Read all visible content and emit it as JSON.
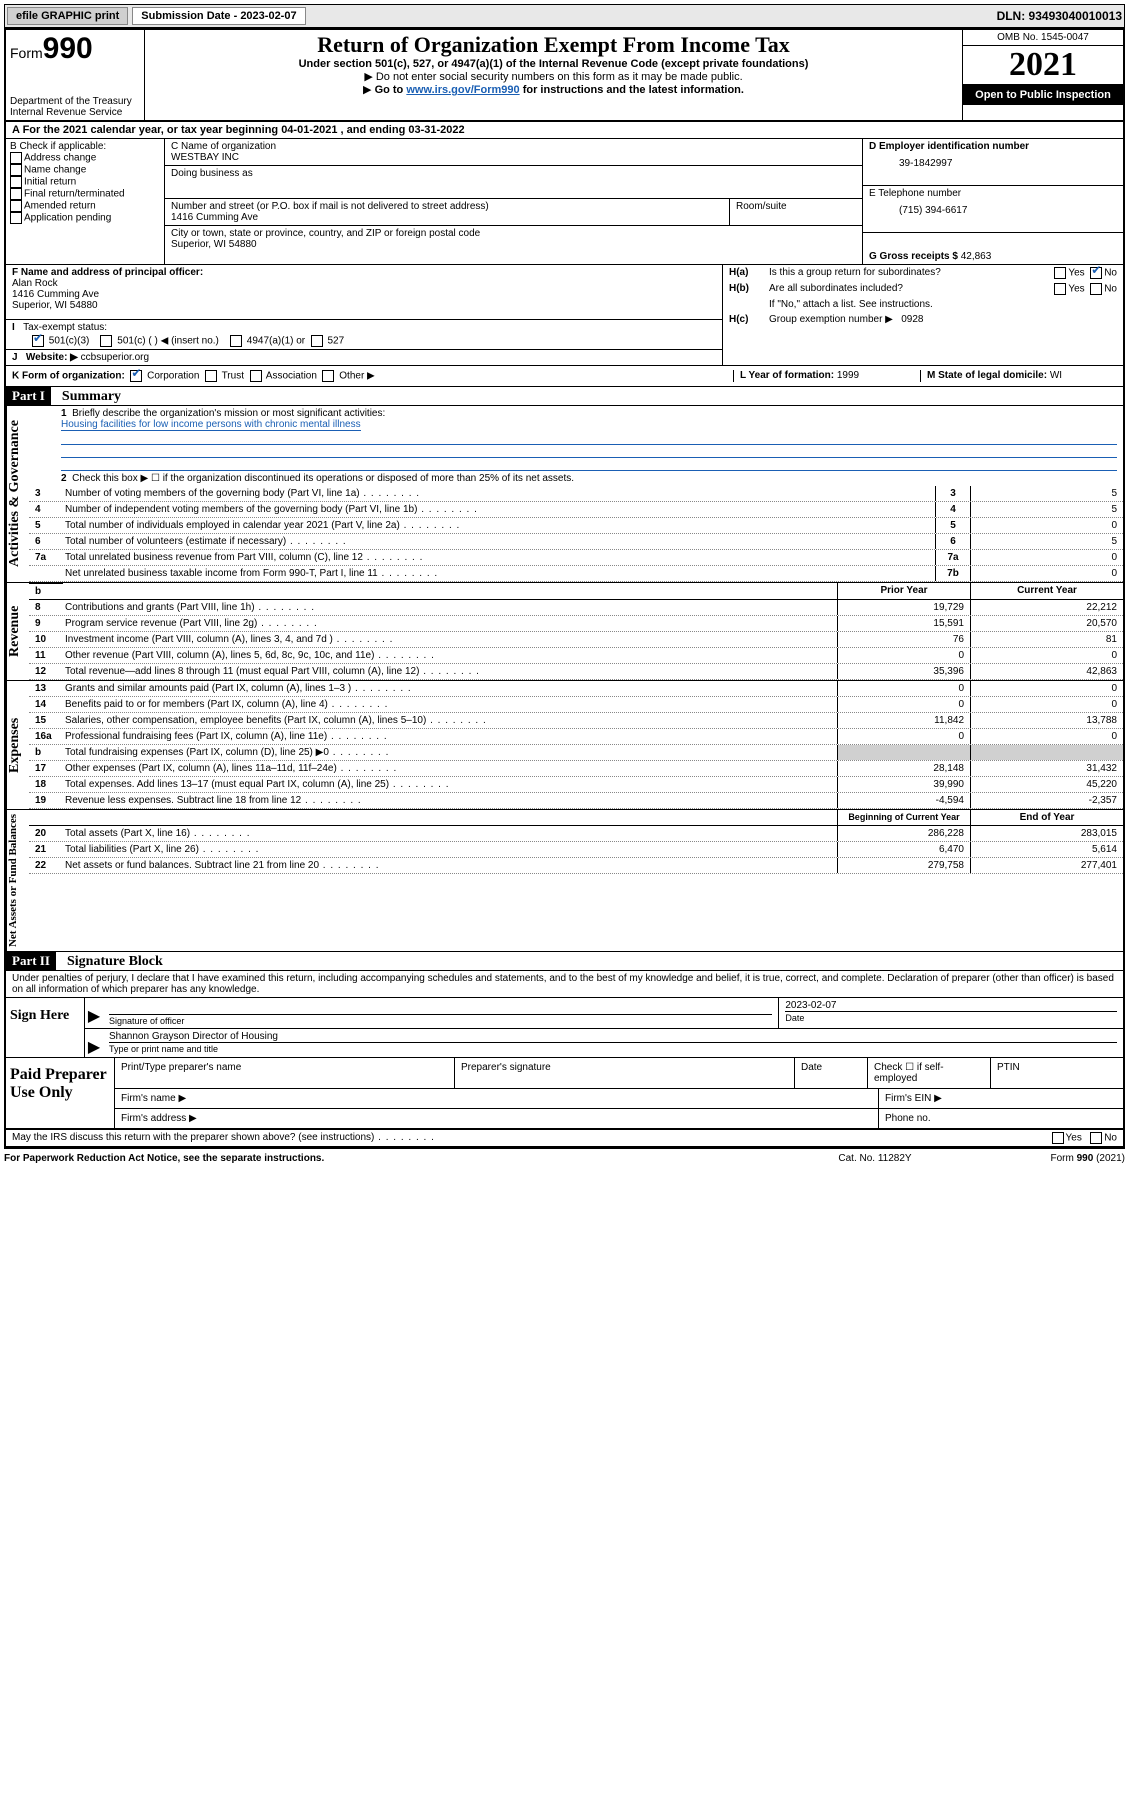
{
  "topbar": {
    "efile_label": "efile GRAPHIC print",
    "sub_date_label": "Submission Date - 2023-02-07",
    "dln": "DLN: 93493040010013"
  },
  "header": {
    "form_label": "Form",
    "form_num": "990",
    "dept": "Department of the Treasury",
    "irs": "Internal Revenue Service",
    "title": "Return of Organization Exempt From Income Tax",
    "subtitle": "Under section 501(c), 527, or 4947(a)(1) of the Internal Revenue Code (except private foundations)",
    "note1": "Do not enter social security numbers on this form as it may be made public.",
    "note2_pre": "Go to ",
    "note2_link": "www.irs.gov/Form990",
    "note2_post": " for instructions and the latest information.",
    "omb": "OMB No. 1545-0047",
    "year": "2021",
    "open": "Open to Public Inspection"
  },
  "row_a": {
    "text": "A For the 2021 calendar year, or tax year beginning 04-01-2021   , and ending 03-31-2022"
  },
  "col_b": {
    "label": "B Check if applicable:",
    "opts": [
      "Address change",
      "Name change",
      "Initial return",
      "Final return/terminated",
      "Amended return",
      "Application pending"
    ]
  },
  "col_c": {
    "name_label": "C Name of organization",
    "name": "WESTBAY INC",
    "dba_label": "Doing business as",
    "dba": "",
    "street_label": "Number and street (or P.O. box if mail is not delivered to street address)",
    "street": "1416 Cumming Ave",
    "room_label": "Room/suite",
    "room": "",
    "city_label": "City or town, state or province, country, and ZIP or foreign postal code",
    "city": "Superior, WI  54880"
  },
  "col_d": {
    "ein_label": "D Employer identification number",
    "ein": "39-1842997",
    "tel_label": "E Telephone number",
    "tel": "(715) 394-6617",
    "gross_label": "G Gross receipts $",
    "gross": "42,863"
  },
  "row_f": {
    "label": "F  Name and address of principal officer:",
    "name": "Alan Rock",
    "addr1": "1416 Cumming Ave",
    "addr2": "Superior, WI  54880"
  },
  "h": {
    "ha_label": "Is this a group return for subordinates?",
    "ha_yes": "Yes",
    "ha_no": "No",
    "hb_label": "Are all subordinates included?",
    "hb_note": "If \"No,\" attach a list. See instructions.",
    "hc_label": "Group exemption number ▶",
    "hc_val": "0928"
  },
  "row_i": {
    "label": "Tax-exempt status:",
    "opt1": "501(c)(3)",
    "opt2": "501(c) (  ) ◀ (insert no.)",
    "opt3": "4947(a)(1) or",
    "opt4": "527"
  },
  "row_j": {
    "label": "Website: ▶",
    "val": "ccbsuperior.org"
  },
  "row_k": {
    "label": "K Form of organization:",
    "opts": [
      "Corporation",
      "Trust",
      "Association",
      "Other ▶"
    ]
  },
  "row_l": {
    "label": "L Year of formation:",
    "val": "1999"
  },
  "row_m": {
    "label": "M State of legal domicile:",
    "val": "WI"
  },
  "part1": {
    "header": "Part I",
    "title": "Summary",
    "q1": "Briefly describe the organization's mission or most significant activities:",
    "q1_ans": "Housing facilities for low income persons with chronic mental illness",
    "q2": "Check this box ▶ ☐  if the organization discontinued its operations or disposed of more than 25% of its net assets.",
    "lines_single": [
      {
        "n": "3",
        "d": "Number of voting members of the governing body (Part VI, line 1a)",
        "b": "3",
        "v": "5"
      },
      {
        "n": "4",
        "d": "Number of independent voting members of the governing body (Part VI, line 1b)",
        "b": "4",
        "v": "5"
      },
      {
        "n": "5",
        "d": "Total number of individuals employed in calendar year 2021 (Part V, line 2a)",
        "b": "5",
        "v": "0"
      },
      {
        "n": "6",
        "d": "Total number of volunteers (estimate if necessary)",
        "b": "6",
        "v": "5"
      },
      {
        "n": "7a",
        "d": "Total unrelated business revenue from Part VIII, column (C), line 12",
        "b": "7a",
        "v": "0"
      },
      {
        "n": "",
        "d": "Net unrelated business taxable income from Form 990-T, Part I, line 11",
        "b": "7b",
        "v": "0"
      }
    ],
    "col_prior": "Prior Year",
    "col_current": "Current Year",
    "revenue": [
      {
        "n": "8",
        "d": "Contributions and grants (Part VIII, line 1h)",
        "p": "19,729",
        "c": "22,212"
      },
      {
        "n": "9",
        "d": "Program service revenue (Part VIII, line 2g)",
        "p": "15,591",
        "c": "20,570"
      },
      {
        "n": "10",
        "d": "Investment income (Part VIII, column (A), lines 3, 4, and 7d )",
        "p": "76",
        "c": "81"
      },
      {
        "n": "11",
        "d": "Other revenue (Part VIII, column (A), lines 5, 6d, 8c, 9c, 10c, and 11e)",
        "p": "0",
        "c": "0"
      },
      {
        "n": "12",
        "d": "Total revenue—add lines 8 through 11 (must equal Part VIII, column (A), line 12)",
        "p": "35,396",
        "c": "42,863"
      }
    ],
    "expenses": [
      {
        "n": "13",
        "d": "Grants and similar amounts paid (Part IX, column (A), lines 1–3 )",
        "p": "0",
        "c": "0"
      },
      {
        "n": "14",
        "d": "Benefits paid to or for members (Part IX, column (A), line 4)",
        "p": "0",
        "c": "0"
      },
      {
        "n": "15",
        "d": "Salaries, other compensation, employee benefits (Part IX, column (A), lines 5–10)",
        "p": "11,842",
        "c": "13,788"
      },
      {
        "n": "16a",
        "d": "Professional fundraising fees (Part IX, column (A), line 11e)",
        "p": "0",
        "c": "0"
      },
      {
        "n": "b",
        "d": "Total fundraising expenses (Part IX, column (D), line 25) ▶0",
        "p": "",
        "c": "",
        "shade": true
      },
      {
        "n": "17",
        "d": "Other expenses (Part IX, column (A), lines 11a–11d, 11f–24e)",
        "p": "28,148",
        "c": "31,432"
      },
      {
        "n": "18",
        "d": "Total expenses. Add lines 13–17 (must equal Part IX, column (A), line 25)",
        "p": "39,990",
        "c": "45,220"
      },
      {
        "n": "19",
        "d": "Revenue less expenses. Subtract line 18 from line 12",
        "p": "-4,594",
        "c": "-2,357"
      }
    ],
    "col_begin": "Beginning of Current Year",
    "col_end": "End of Year",
    "netassets": [
      {
        "n": "20",
        "d": "Total assets (Part X, line 16)",
        "p": "286,228",
        "c": "283,015"
      },
      {
        "n": "21",
        "d": "Total liabilities (Part X, line 26)",
        "p": "6,470",
        "c": "5,614"
      },
      {
        "n": "22",
        "d": "Net assets or fund balances. Subtract line 21 from line 20",
        "p": "279,758",
        "c": "277,401"
      }
    ]
  },
  "part2": {
    "header": "Part II",
    "title": "Signature Block",
    "decl": "Under penalties of perjury, I declare that I have examined this return, including accompanying schedules and statements, and to the best of my knowledge and belief, it is true, correct, and complete. Declaration of preparer (other than officer) is based on all information of which preparer has any knowledge.",
    "sign_here": "Sign Here",
    "sig_officer": "Signature of officer",
    "date_label": "Date",
    "date_val": "2023-02-07",
    "name_title": "Shannon Grayson  Director of Housing",
    "name_under": "Type or print name and title",
    "paid": "Paid Preparer Use Only",
    "pt_name": "Print/Type preparer's name",
    "pt_sig": "Preparer's signature",
    "pt_date": "Date",
    "pt_check": "Check ☐ if self-employed",
    "ptin": "PTIN",
    "firm_name": "Firm's name  ▶",
    "firm_ein": "Firm's EIN ▶",
    "firm_addr": "Firm's address ▶",
    "phone": "Phone no."
  },
  "discuss": {
    "q": "May the IRS discuss this return with the preparer shown above? (see instructions)",
    "yes": "Yes",
    "no": "No"
  },
  "footer": {
    "left": "For Paperwork Reduction Act Notice, see the separate instructions.",
    "mid": "Cat. No. 11282Y",
    "right": "Form 990 (2021)"
  }
}
